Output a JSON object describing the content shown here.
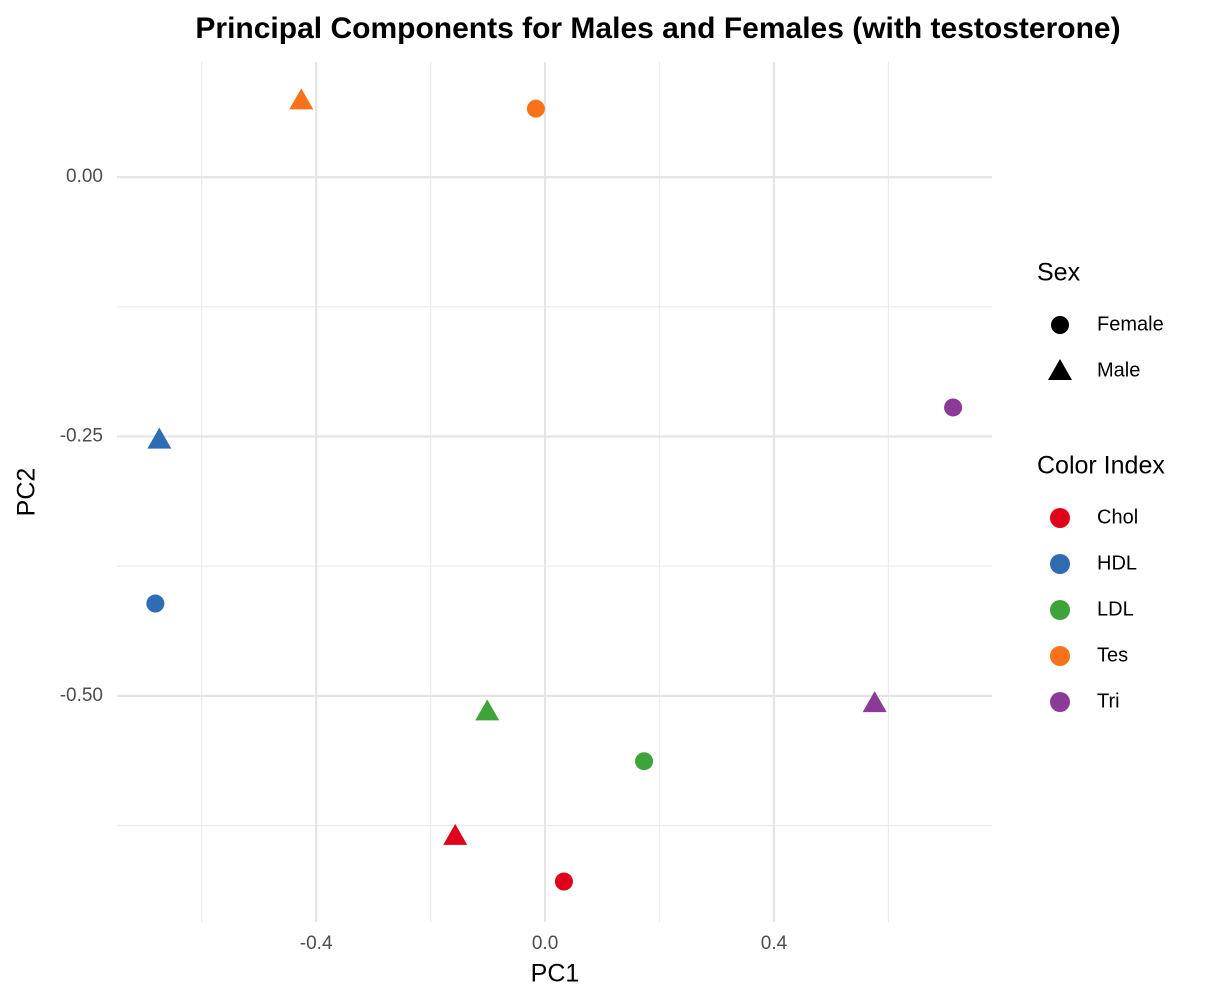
{
  "chart_data": {
    "type": "scatter",
    "title": "Principal Components for Males and Females (with testosterone)",
    "x_label": "PC1",
    "y_label": "PC2",
    "xlim": [
      -0.748,
      0.781
    ],
    "ylim": [
      -0.718,
      0.111
    ],
    "xticks": [
      -0.4,
      {
        "value": 0,
        "label": "0.0"
      },
      0.4
    ],
    "yticks": [
      {
        "value": 0,
        "label": "0.00"
      },
      -0.25,
      {
        "value": -0.5,
        "label": "-0.50"
      }
    ],
    "minor_xticks": [
      -0.6,
      -0.2,
      0.2,
      0.6
    ],
    "minor_yticks": [
      -0.125,
      -0.375,
      -0.625
    ],
    "grid": true,
    "shape_legend": {
      "title": "Sex",
      "entries": [
        {
          "name": "Female",
          "shape": "circle"
        },
        {
          "name": "Male",
          "shape": "triangle"
        }
      ]
    },
    "color_legend_title": "Color Index",
    "series": [
      {
        "name": "Chol",
        "color": "#e0001b",
        "x": [
          0.033,
          -0.157
        ],
        "values": [
          -0.679,
          -0.635
        ]
      },
      {
        "name": "HDL",
        "color": "#2e6db4",
        "x": [
          -0.681,
          -0.674
        ],
        "values": [
          -0.411,
          -0.253
        ]
      },
      {
        "name": "LDL",
        "color": "#3fa33b",
        "x": [
          0.173,
          -0.101
        ],
        "values": [
          -0.563,
          -0.515
        ]
      },
      {
        "name": "Tes",
        "color": "#f8721a",
        "x": [
          -0.016,
          -0.426
        ],
        "values": [
          0.066,
          0.074
        ]
      },
      {
        "name": "Tri",
        "color": "#8b3a98",
        "x": [
          0.713,
          0.576
        ],
        "values": [
          -0.222,
          -0.507
        ]
      }
    ]
  }
}
